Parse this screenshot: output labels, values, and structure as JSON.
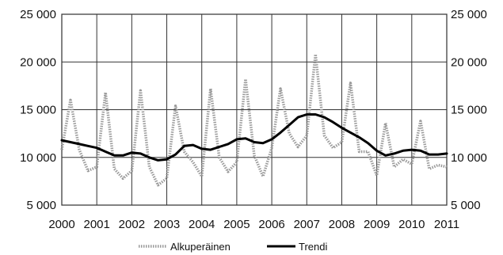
{
  "chart_data": {
    "type": "line",
    "title": "",
    "xlabel": "",
    "ylabel": "",
    "ylim": [
      5000,
      25000
    ],
    "yticks": [
      5000,
      10000,
      15000,
      20000,
      25000
    ],
    "ytick_labels": [
      "5 000",
      "10 000",
      "15 000",
      "20 000",
      "25 000"
    ],
    "secondary_y_axis": true,
    "xlim": [
      2000,
      2011
    ],
    "xtick_labels": [
      "2000",
      "2001",
      "2002",
      "2003",
      "2004",
      "2005",
      "2006",
      "2007",
      "2008",
      "2009",
      "2010",
      "2011"
    ],
    "grid": "vertical and horizontal",
    "legend_position": "bottom",
    "series": [
      {
        "name": "Alkuperäinen",
        "color": "#9a9a9a",
        "style": "dotted",
        "x": [
          2000.0,
          2000.25,
          2000.5,
          2000.75,
          2001.0,
          2001.25,
          2001.5,
          2001.75,
          2002.0,
          2002.25,
          2002.5,
          2002.75,
          2003.0,
          2003.25,
          2003.5,
          2003.75,
          2004.0,
          2004.25,
          2004.5,
          2004.75,
          2005.0,
          2005.25,
          2005.5,
          2005.75,
          2006.0,
          2006.25,
          2006.5,
          2006.75,
          2007.0,
          2007.25,
          2007.5,
          2007.75,
          2008.0,
          2008.25,
          2008.5,
          2008.75,
          2009.0,
          2009.25,
          2009.5,
          2009.75,
          2010.0,
          2010.25,
          2010.5,
          2010.75,
          2011.0
        ],
        "y": [
          10800,
          16000,
          10800,
          8600,
          9000,
          16800,
          8800,
          7800,
          8600,
          17000,
          9000,
          7100,
          7800,
          15400,
          10600,
          9500,
          8000,
          17200,
          10000,
          8500,
          9500,
          18200,
          10200,
          8000,
          11000,
          17200,
          12500,
          11100,
          12300,
          20800,
          12300,
          11000,
          11600,
          17800,
          10600,
          10600,
          8100,
          13600,
          9000,
          9800,
          9300,
          13800,
          8800,
          9200,
          9000
        ]
      },
      {
        "name": "Trendi",
        "color": "#000000",
        "style": "solid",
        "x": [
          2000.0,
          2000.25,
          2000.5,
          2000.75,
          2001.0,
          2001.25,
          2001.5,
          2001.75,
          2002.0,
          2002.25,
          2002.5,
          2002.75,
          2003.0,
          2003.25,
          2003.5,
          2003.75,
          2004.0,
          2004.25,
          2004.5,
          2004.75,
          2005.0,
          2005.25,
          2005.5,
          2005.75,
          2006.0,
          2006.25,
          2006.5,
          2006.75,
          2007.0,
          2007.25,
          2007.5,
          2007.75,
          2008.0,
          2008.25,
          2008.5,
          2008.75,
          2009.0,
          2009.25,
          2009.5,
          2009.75,
          2010.0,
          2010.25,
          2010.5,
          2010.75,
          2011.0
        ],
        "y": [
          11800,
          11600,
          11400,
          11200,
          11000,
          10600,
          10200,
          10200,
          10500,
          10400,
          10000,
          9700,
          9800,
          10300,
          11200,
          11300,
          10900,
          10800,
          11100,
          11400,
          11900,
          12000,
          11600,
          11500,
          11900,
          12600,
          13400,
          14200,
          14500,
          14500,
          14200,
          13700,
          13100,
          12600,
          12100,
          11500,
          10700,
          10200,
          10400,
          10700,
          10800,
          10700,
          10300,
          10300,
          10400
        ]
      }
    ]
  }
}
